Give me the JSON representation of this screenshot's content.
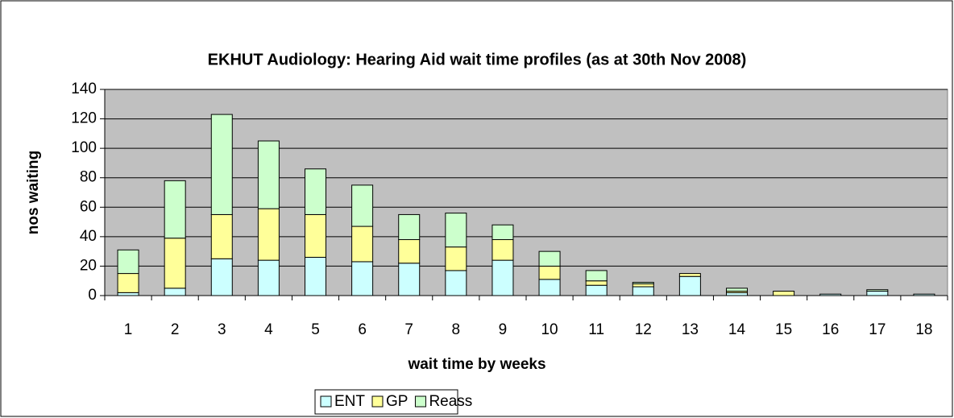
{
  "chart_data": {
    "type": "stacked_bar",
    "title": "EKHUT Audiology: Hearing Aid wait time profiles (as at 30th Nov 2008)",
    "x_label": "wait time by weeks",
    "y_label": "nos waiting",
    "categories": [
      "1",
      "2",
      "3",
      "4",
      "5",
      "6",
      "7",
      "8",
      "9",
      "10",
      "11",
      "12",
      "13",
      "14",
      "15",
      "16",
      "17",
      "18"
    ],
    "series": [
      {
        "name": "ENT",
        "color": "#ccffff",
        "values": [
          2,
          5,
          25,
          24,
          26,
          23,
          22,
          17,
          24,
          11,
          7,
          6,
          13,
          2,
          0,
          1,
          3,
          1
        ]
      },
      {
        "name": "GP",
        "color": "#ffff99",
        "values": [
          13,
          34,
          30,
          35,
          29,
          24,
          16,
          16,
          14,
          9,
          3,
          2,
          2,
          1,
          3,
          0,
          0,
          0
        ]
      },
      {
        "name": "Reass",
        "color": "#ccffcc",
        "values": [
          16,
          39,
          68,
          46,
          31,
          28,
          17,
          23,
          10,
          10,
          7,
          1,
          0,
          2,
          0,
          0,
          1,
          0
        ]
      }
    ],
    "ylim": [
      0,
      140
    ],
    "yticks": [
      0,
      20,
      40,
      60,
      80,
      100,
      120,
      140
    ],
    "grid": true,
    "plot_background": "#c0c0c0",
    "legend": "bottom"
  }
}
